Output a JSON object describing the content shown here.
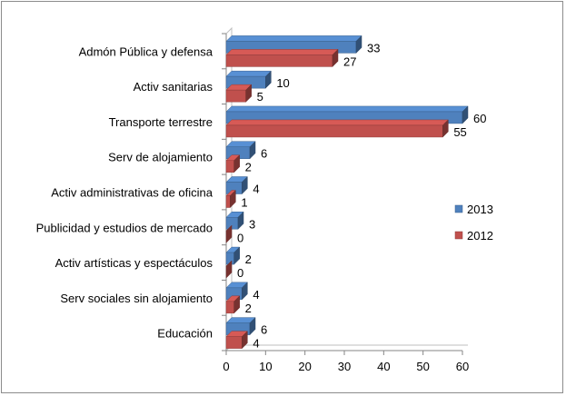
{
  "chart_data": {
    "type": "bar",
    "orientation": "horizontal",
    "style": "3d",
    "categories": [
      "Admón Pública y defensa",
      "Activ sanitarias",
      "Transporte terrestre",
      "Serv de alojamiento",
      "Activ administrativas de oficina",
      "Publicidad y estudios de mercado",
      "Activ artísticas y espectáculos",
      "Serv sociales sin alojamiento",
      "Educación"
    ],
    "series": [
      {
        "name": "2013",
        "values": [
          33,
          10,
          60,
          6,
          4,
          3,
          2,
          4,
          6
        ],
        "color": "#4f81bd"
      },
      {
        "name": "2012",
        "values": [
          27,
          5,
          55,
          2,
          1,
          0,
          0,
          2,
          4
        ],
        "color": "#c0504d"
      }
    ],
    "xlim": [
      0,
      60
    ],
    "xticks": [
      0,
      10,
      20,
      30,
      40,
      50,
      60
    ],
    "grid": false,
    "legend_position": "right",
    "data_labels": true
  }
}
